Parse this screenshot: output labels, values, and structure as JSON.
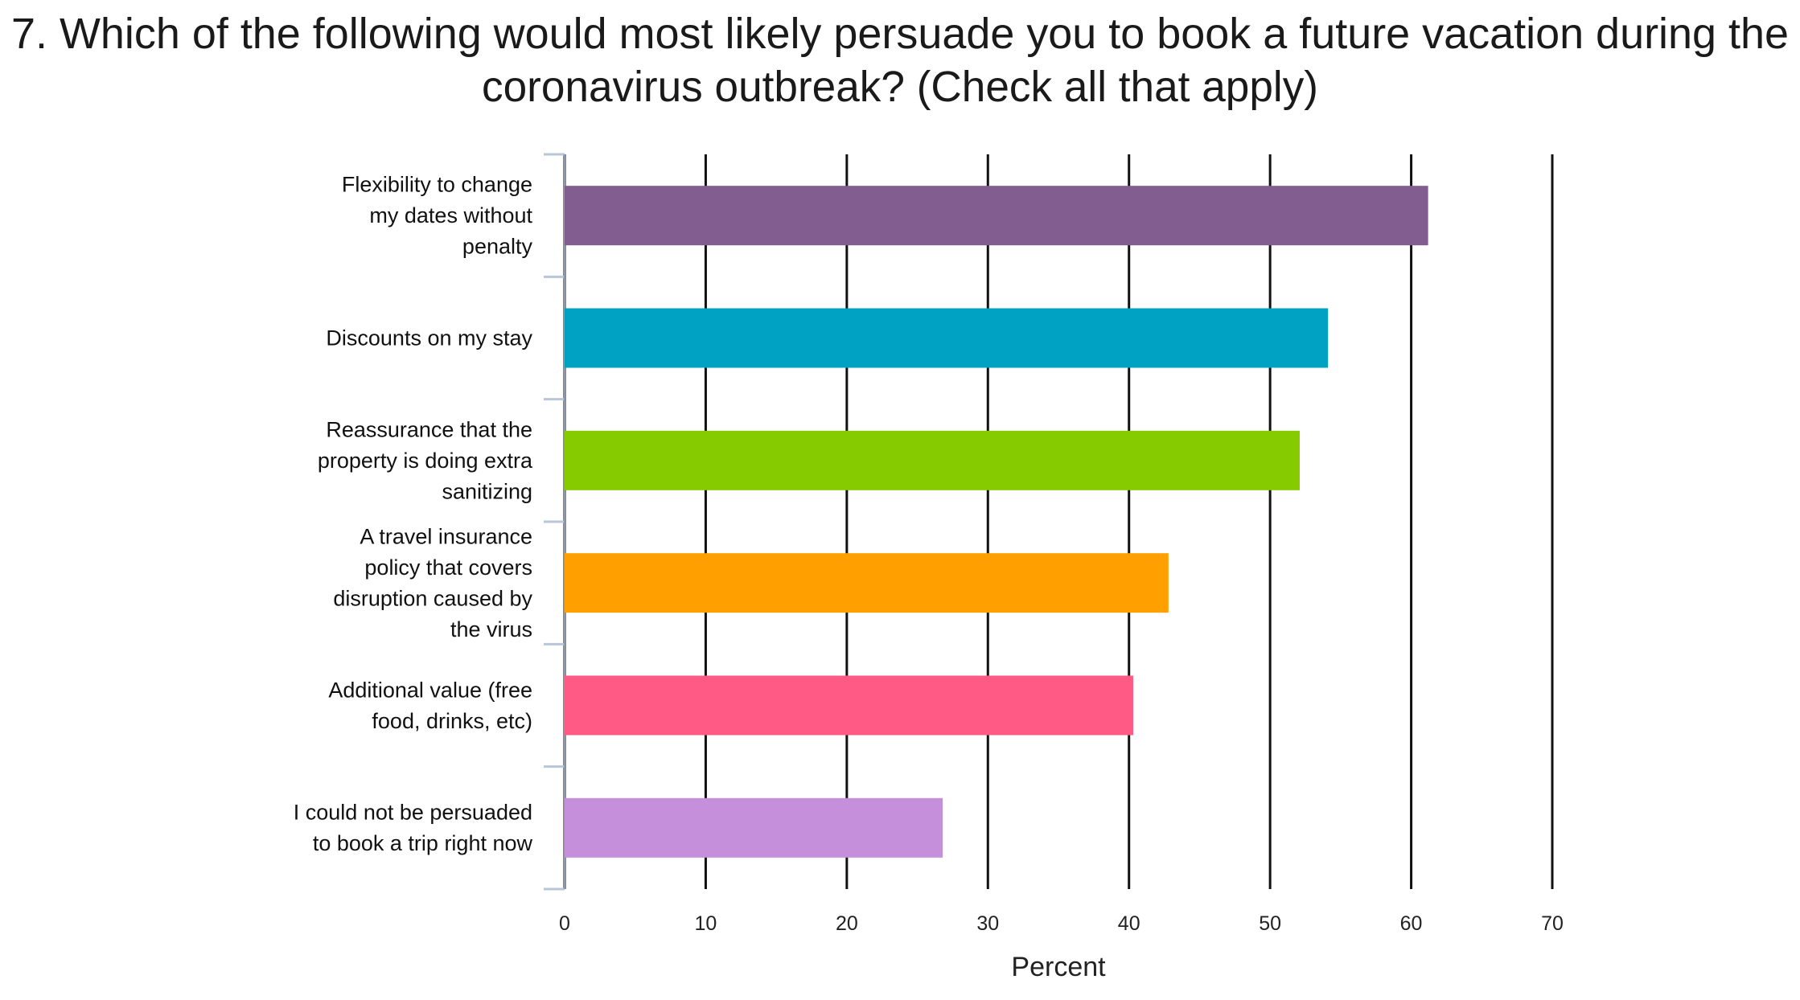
{
  "chart_data": {
    "type": "bar",
    "orientation": "horizontal",
    "title_lines": [
      "7. Which of the following would most likely persuade you to book a future vacation during the",
      "coronavirus outbreak? (Check all that apply)"
    ],
    "xlabel": "Percent",
    "ylabel": "",
    "xlim": [
      0,
      70
    ],
    "xticks": [
      0,
      10,
      20,
      30,
      40,
      50,
      60,
      70
    ],
    "grid": true,
    "categories": [
      {
        "label_lines": [
          "Flexibility to change",
          "my dates without",
          "penalty"
        ],
        "value": 61.2,
        "color": "#825d8f"
      },
      {
        "label_lines": [
          "Discounts on my stay"
        ],
        "value": 54.1,
        "color": "#00a2c4"
      },
      {
        "label_lines": [
          "Reassurance that the",
          "property is doing extra",
          "sanitizing"
        ],
        "value": 52.1,
        "color": "#86cb00"
      },
      {
        "label_lines": [
          "A travel insurance",
          "policy that covers",
          "disruption caused by",
          "the virus"
        ],
        "value": 42.8,
        "color": "#ffa000"
      },
      {
        "label_lines": [
          "Additional value (free",
          "food, drinks, etc)"
        ],
        "value": 40.3,
        "color": "#ff5a85"
      },
      {
        "label_lines": [
          "I could not be persuaded",
          "to book a trip right now"
        ],
        "value": 26.8,
        "color": "#c58fdc"
      }
    ]
  }
}
